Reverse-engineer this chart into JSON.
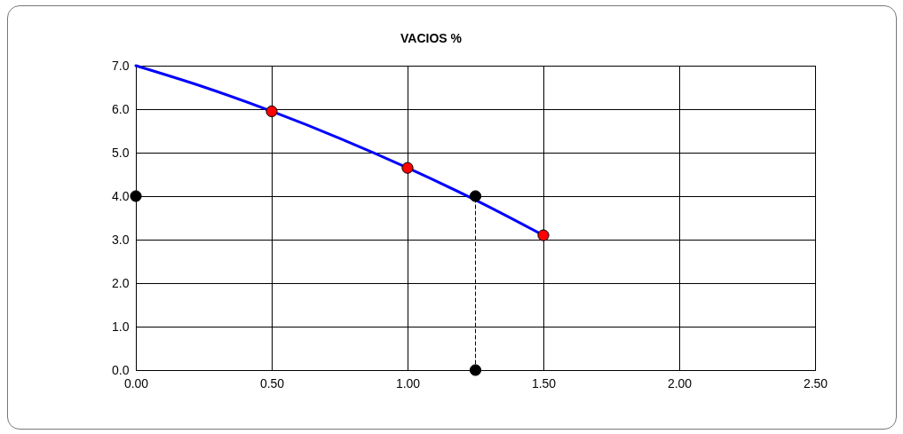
{
  "chart_data": {
    "type": "line",
    "title": "VACIOS %",
    "grid": true,
    "xlim": [
      0,
      2.5
    ],
    "xticks": [
      {
        "value": 0,
        "label": "0.00"
      },
      {
        "value": 0.5,
        "label": "0.50"
      },
      {
        "value": 1,
        "label": "1.00"
      },
      {
        "value": 1.5,
        "label": "1.50"
      },
      {
        "value": 2,
        "label": "2.00"
      },
      {
        "value": 2.5,
        "label": "2.50"
      }
    ],
    "ylim": [
      0,
      7
    ],
    "yticks": [
      {
        "value": 0,
        "label": "0.0"
      },
      {
        "value": 1,
        "label": "1.0"
      },
      {
        "value": 2,
        "label": "2.0"
      },
      {
        "value": 3,
        "label": "3.0"
      },
      {
        "value": 4,
        "label": "4.0"
      },
      {
        "value": 5,
        "label": "5.0"
      },
      {
        "value": 6,
        "label": "6.0"
      },
      {
        "value": 7,
        "label": "7.0"
      }
    ],
    "series": [
      {
        "color": "#0000ff",
        "marker": "none",
        "line_style": "solid",
        "x": [
          0,
          0.25,
          0.5,
          0.75,
          1.0,
          1.25,
          1.5
        ],
        "values": [
          7.0,
          6.51,
          5.95,
          5.33,
          4.65,
          3.91,
          3.1
        ]
      },
      {
        "type": "scatter",
        "color": "#ff0000",
        "marker": "circle",
        "x": [
          0.5,
          1.0,
          1.5
        ],
        "values": [
          5.95,
          4.65,
          3.1
        ]
      },
      {
        "color": "#000000",
        "marker": "none",
        "line_style": "dashed",
        "x": [
          1.25,
          1.25
        ],
        "values": [
          0,
          4
        ]
      },
      {
        "type": "scatter",
        "color": "#000000",
        "marker": "circle",
        "x": [
          0,
          1.25,
          1.25
        ],
        "values": [
          4,
          4,
          0
        ]
      }
    ]
  }
}
